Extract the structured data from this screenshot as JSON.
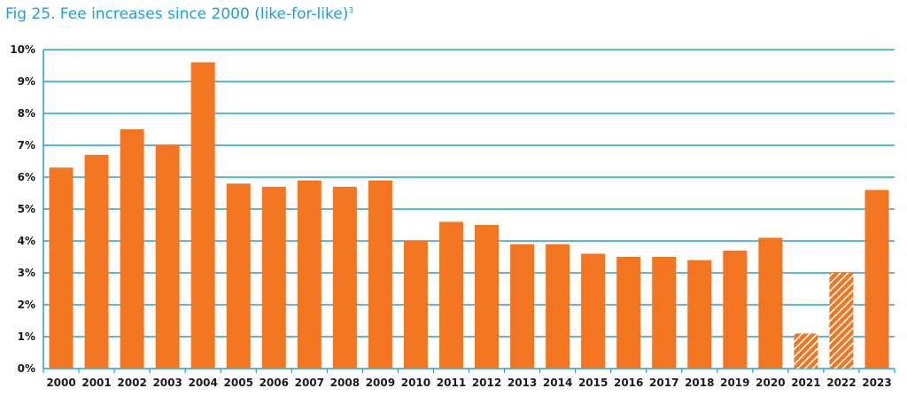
{
  "chart_data": {
    "type": "bar",
    "title": "Fig 25. Fee increases since 2000 (like-for-like)",
    "title_superscript": "3",
    "xlabel": "",
    "ylabel": "",
    "ylim": [
      0,
      10
    ],
    "yticks": [
      "0%",
      "1%",
      "2%",
      "3%",
      "4%",
      "5%",
      "6%",
      "7%",
      "8%",
      "9%",
      "10%"
    ],
    "grid": true,
    "categories": [
      "2000",
      "2001",
      "2002",
      "2003",
      "2004",
      "2005",
      "2006",
      "2007",
      "2008",
      "2009",
      "2010",
      "2011",
      "2012",
      "2013",
      "2014",
      "2015",
      "2016",
      "2017",
      "2018",
      "2019",
      "2020",
      "2021",
      "2022",
      "2023"
    ],
    "values": [
      6.3,
      6.7,
      7.5,
      7.0,
      9.6,
      5.8,
      5.7,
      5.9,
      5.7,
      5.9,
      4.0,
      4.6,
      4.5,
      3.9,
      3.9,
      3.6,
      3.5,
      3.5,
      3.4,
      3.7,
      4.1,
      1.1,
      3.0,
      5.6
    ],
    "hatched": [
      "2021",
      "2022"
    ],
    "colors": {
      "bar": "#f47521",
      "grid": "#1ea0dc",
      "title": "#1ea0dc"
    }
  }
}
